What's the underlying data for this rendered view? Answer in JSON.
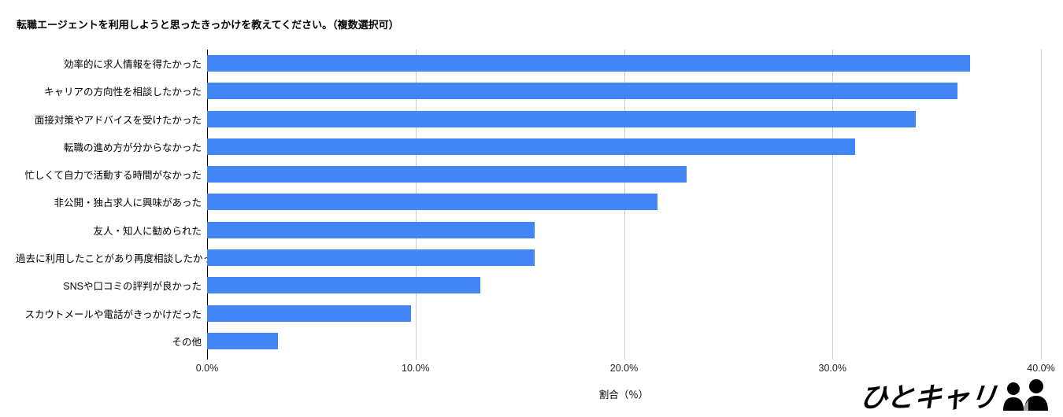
{
  "title": "転職エージェントを利用しようと思ったきっかけを教えてください。（複数選択可）",
  "chart_data": {
    "type": "bar",
    "orientation": "horizontal",
    "title": "転職エージェントを利用しようと思ったきっかけを教えてください。（複数選択可）",
    "categories": [
      "効率的に求人情報を得たかった",
      "キャリアの方向性を相談したかった",
      "面接対策やアドバイスを受けたかった",
      "転職の進め方が分からなかった",
      "忙しくて自力で活動する時間がなかった",
      "非公開・独占求人に興味があった",
      "友人・知人に勧められた",
      "過去に利用したことがあり再度相談したかった",
      "SNSや口コミの評判が良かった",
      "スカウトメールや電話がきっかけだった",
      "その他"
    ],
    "values": [
      36.6,
      36.0,
      34.0,
      31.1,
      23.0,
      21.6,
      15.7,
      15.7,
      13.1,
      9.8,
      3.4
    ],
    "xlabel": "割合（％）",
    "xlim": [
      0,
      40
    ],
    "xtick_values": [
      0,
      10,
      20,
      30,
      40
    ],
    "xtick_labels": [
      "0.0%",
      "10.0%",
      "20.0%",
      "30.0%",
      "40.0%"
    ],
    "grid": true,
    "legend": false,
    "bar_color": "#4285f4",
    "gridline_color": "#cccccc",
    "axis_line_color": "#000000"
  },
  "footer": {
    "logo_text": "ひとキャリ",
    "logo_icon": "people-icon"
  }
}
